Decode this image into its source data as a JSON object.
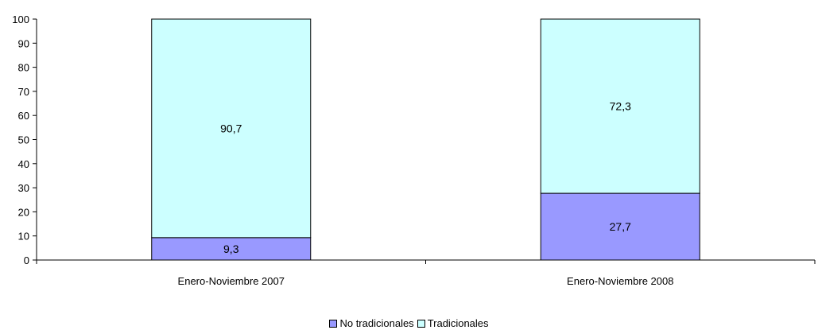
{
  "chart_data": {
    "type": "bar",
    "stacked": true,
    "categories": [
      "Enero-Noviembre 2007",
      "Enero-Noviembre 2008"
    ],
    "series": [
      {
        "name": "No tradicionales",
        "values": [
          9.3,
          27.7
        ],
        "labels": [
          "9,3",
          "27,7"
        ],
        "color": "#9999ff"
      },
      {
        "name": "Tradicionales",
        "values": [
          90.7,
          72.3
        ],
        "labels": [
          "90,7",
          "72,3"
        ],
        "color": "#ccffff"
      }
    ],
    "ylim": [
      0,
      100
    ],
    "yticks": [
      0,
      10,
      20,
      30,
      40,
      50,
      60,
      70,
      80,
      90,
      100
    ],
    "grid": false,
    "legend_position": "bottom"
  }
}
